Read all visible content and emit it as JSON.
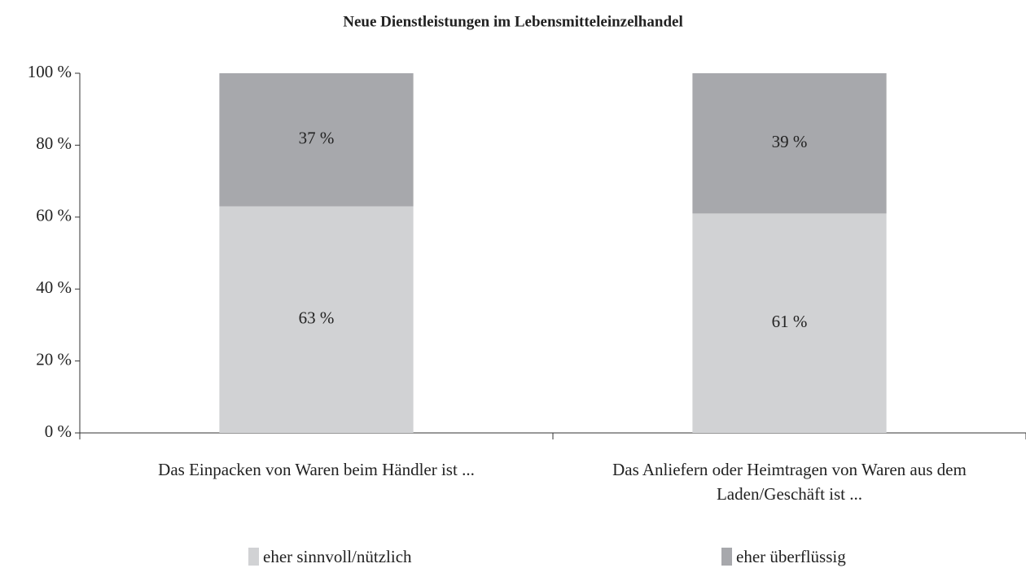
{
  "chart_data": {
    "type": "stacked_bar",
    "title": "Neue Dienstleistungen im Lebensmitteleinzelhandel",
    "categories": [
      "Das Einpacken von Waren beim Händler ist ...",
      "Das Anliefern oder Heimtragen von Waren aus dem Laden/Geschäft ist ..."
    ],
    "series": [
      {
        "name": "eher sinnvoll/nützlich",
        "color": "#d1d2d4",
        "values": [
          63,
          61
        ],
        "value_labels": [
          "63 %",
          "61 %"
        ]
      },
      {
        "name": "eher überflüssig",
        "color": "#a7a8ac",
        "values": [
          37,
          39
        ],
        "value_labels": [
          "37 %",
          "39 %"
        ]
      }
    ],
    "ylim": [
      0,
      100
    ],
    "yticks": [
      {
        "value": 0,
        "label": "0 %"
      },
      {
        "value": 20,
        "label": "20 %"
      },
      {
        "value": 40,
        "label": "40 %"
      },
      {
        "value": 60,
        "label": "60 %"
      },
      {
        "value": 80,
        "label": "80 %"
      },
      {
        "value": 100,
        "label": "100 %"
      }
    ]
  }
}
